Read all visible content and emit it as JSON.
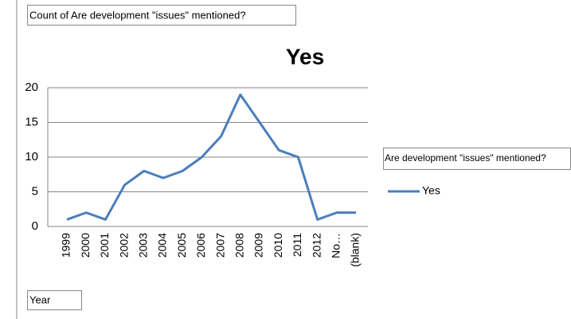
{
  "chart_data": {
    "type": "line",
    "value_field": "Count of Are development \"issues\" mentioned?",
    "axis_field": "Year",
    "title": "Yes",
    "legend_title": "Are development \"issues\" mentioned?",
    "categories": [
      "1999",
      "2000",
      "2001",
      "2002",
      "2003",
      "2004",
      "2005",
      "2006",
      "2007",
      "2008",
      "2009",
      "2010",
      "2011",
      "2012",
      "No…",
      "(blank)"
    ],
    "series": [
      {
        "name": "Yes",
        "color": "#4a7ebb",
        "values": [
          1,
          2,
          1,
          6,
          8,
          7,
          8,
          10,
          13,
          19,
          15,
          11,
          10,
          1,
          2,
          2
        ]
      }
    ],
    "ylim": [
      0,
      20
    ],
    "yticks": [
      0,
      5,
      10,
      15,
      20
    ],
    "grid": true,
    "legend": "right"
  }
}
